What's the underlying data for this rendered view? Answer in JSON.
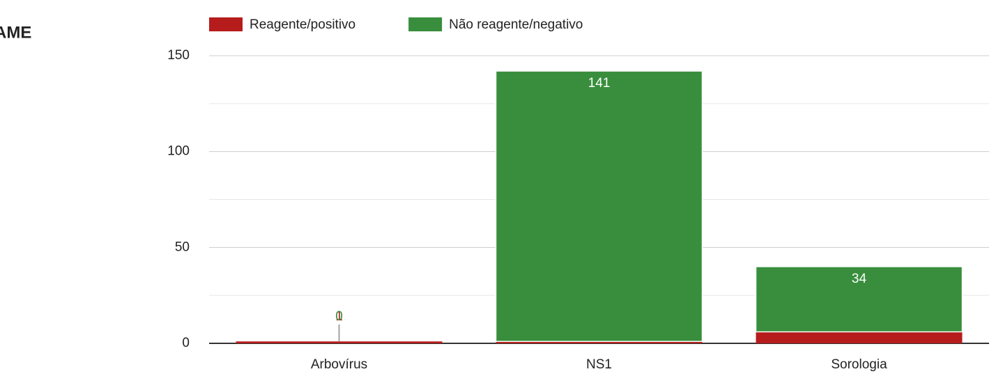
{
  "chart_data": {
    "type": "stacked_bar",
    "title": "AME",
    "categories": [
      "Arbovírus",
      "NS1",
      "Sorologia"
    ],
    "series": [
      {
        "name": "Reagente/positivo",
        "color": "#b71c1c",
        "values": [
          1,
          1,
          6
        ]
      },
      {
        "name": "Não reagente/negativo",
        "color": "#388e3c",
        "values": [
          0,
          141,
          34
        ]
      }
    ],
    "ylim": [
      0,
      150
    ],
    "yticks": [
      0,
      50,
      100,
      150
    ],
    "grid": true
  }
}
